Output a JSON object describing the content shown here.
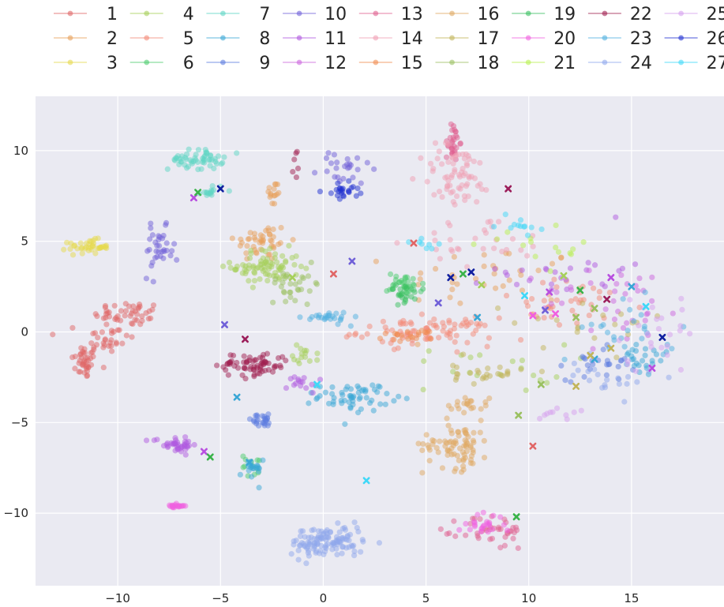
{
  "chart_data": {
    "type": "scatter",
    "title": "",
    "xlabel": "",
    "ylabel": "",
    "xlim": [
      -14.0,
      19.5
    ],
    "ylim": [
      -14.0,
      13.0
    ],
    "xticks": [
      -10,
      -5,
      0,
      5,
      10,
      15
    ],
    "yticks": [
      -10,
      -5,
      0,
      5,
      10
    ],
    "grid": true,
    "background": "#eaeaf2",
    "grid_color": "#ffffff",
    "legend_position": "top",
    "legend_columns": 9,
    "series": [
      {
        "name": "1",
        "color": "#e06666",
        "clusters": [
          [
            -11.6,
            -1.6,
            0.6,
            0.9,
            40
          ],
          [
            -9.5,
            1.0,
            1.5,
            0.6,
            45
          ],
          [
            -10.5,
            -0.4,
            1.2,
            1.0,
            30
          ]
        ]
      },
      {
        "name": "2",
        "color": "#e8a05a",
        "clusters": [
          [
            -3.0,
            5.0,
            1.2,
            1.0,
            45
          ],
          [
            -2.4,
            7.6,
            0.3,
            0.7,
            15
          ],
          [
            8.0,
            3.0,
            4.0,
            1.6,
            35
          ]
        ]
      },
      {
        "name": "3",
        "color": "#e6d94c",
        "clusters": [
          [
            -11.4,
            4.7,
            0.9,
            0.35,
            40
          ]
        ]
      },
      {
        "name": "4",
        "color": "#a6cf5a",
        "clusters": [
          [
            -2.8,
            3.6,
            1.5,
            0.9,
            80
          ],
          [
            -0.8,
            -1.2,
            0.6,
            0.5,
            15
          ],
          [
            8.0,
            -2.0,
            3.5,
            1.2,
            20
          ]
        ]
      },
      {
        "name": "5",
        "color": "#f48a78",
        "clusters": [
          [
            5.0,
            0.0,
            3.0,
            0.7,
            90
          ],
          [
            12.0,
            1.5,
            3.5,
            1.2,
            40
          ]
        ]
      },
      {
        "name": "6",
        "color": "#4ccc6e",
        "clusters": [
          [
            4.0,
            2.6,
            0.8,
            0.6,
            35
          ],
          [
            -3.4,
            -7.4,
            0.5,
            0.6,
            12
          ]
        ]
      },
      {
        "name": "7",
        "color": "#5dd6c4",
        "clusters": [
          [
            -6.2,
            9.5,
            1.2,
            0.5,
            55
          ],
          [
            -5.4,
            7.8,
            0.5,
            0.3,
            15
          ]
        ]
      },
      {
        "name": "8",
        "color": "#3aa7d6",
        "clusters": [
          [
            1.5,
            -3.6,
            1.6,
            0.7,
            60
          ],
          [
            -3.5,
            -7.6,
            0.5,
            0.6,
            20
          ],
          [
            15.5,
            -1.5,
            1.2,
            1.0,
            25
          ]
        ]
      },
      {
        "name": "9",
        "color": "#5b7be0",
        "clusters": [
          [
            -3.0,
            -4.9,
            0.8,
            0.3,
            25
          ],
          [
            13.5,
            -1.6,
            1.5,
            1.0,
            25
          ]
        ]
      },
      {
        "name": "10",
        "color": "#7060d8",
        "clusters": [
          [
            -8.0,
            4.4,
            0.7,
            1.2,
            35
          ],
          [
            1.0,
            9.0,
            1.2,
            0.9,
            25
          ]
        ]
      },
      {
        "name": "11",
        "color": "#b05adf",
        "clusters": [
          [
            -7.2,
            -6.2,
            1.0,
            0.4,
            40
          ],
          [
            -1.0,
            -2.8,
            0.7,
            0.5,
            15
          ],
          [
            11.5,
            3.5,
            3.0,
            1.5,
            25
          ]
        ]
      },
      {
        "name": "12",
        "color": "#cc66dd",
        "clusters": [
          [
            14.5,
            1.5,
            3.5,
            2.0,
            35
          ]
        ]
      },
      {
        "name": "13",
        "color": "#e06090",
        "clusters": [
          [
            6.3,
            10.5,
            0.3,
            1.0,
            30
          ],
          [
            8.3,
            -11.0,
            1.5,
            0.9,
            40
          ]
        ]
      },
      {
        "name": "14",
        "color": "#f0a0b4",
        "clusters": [
          [
            6.5,
            8.6,
            1.6,
            1.6,
            70
          ],
          [
            8.0,
            5.0,
            3.0,
            1.2,
            30
          ]
        ]
      },
      {
        "name": "15",
        "color": "#f08c50",
        "clusters": [
          [
            4.2,
            -0.2,
            1.5,
            0.3,
            20
          ]
        ]
      },
      {
        "name": "16",
        "color": "#e0a860",
        "clusters": [
          [
            6.5,
            -6.2,
            1.5,
            1.2,
            80
          ],
          [
            7.0,
            -4.0,
            1.0,
            0.4,
            20
          ]
        ]
      },
      {
        "name": "17",
        "color": "#c2b45a",
        "clusters": [
          [
            8.0,
            -2.3,
            1.5,
            0.5,
            25
          ],
          [
            13.0,
            0.5,
            3.5,
            1.5,
            20
          ]
        ]
      },
      {
        "name": "18",
        "color": "#9ac060",
        "clusters": [
          [
            -1.3,
            2.7,
            1.2,
            0.8,
            30
          ]
        ]
      },
      {
        "name": "19",
        "color": "#3ac060",
        "clusters": [
          [
            4.0,
            2.0,
            0.8,
            0.5,
            20
          ]
        ]
      },
      {
        "name": "20",
        "color": "#f060e0",
        "clusters": [
          [
            -7.2,
            -9.6,
            0.4,
            0.1,
            20
          ],
          [
            7.7,
            -10.6,
            1.0,
            0.5,
            25
          ]
        ]
      },
      {
        "name": "21",
        "color": "#b8f050",
        "clusters": [
          [
            11.0,
            4.5,
            3.0,
            1.0,
            15
          ]
        ]
      },
      {
        "name": "22",
        "color": "#a02050",
        "clusters": [
          [
            -3.4,
            -1.8,
            1.6,
            0.6,
            70
          ],
          [
            -1.4,
            9.7,
            0.3,
            1.6,
            6
          ]
        ]
      },
      {
        "name": "23",
        "color": "#50b0e0",
        "clusters": [
          [
            0.2,
            0.8,
            1.0,
            0.3,
            25
          ],
          [
            15.0,
            0.0,
            2.0,
            1.5,
            25
          ]
        ]
      },
      {
        "name": "24",
        "color": "#90a8ec",
        "clusters": [
          [
            0.2,
            -11.6,
            1.6,
            0.8,
            120
          ],
          [
            14.0,
            -2.5,
            2.0,
            1.0,
            20
          ]
        ]
      },
      {
        "name": "25",
        "color": "#d6a0ee",
        "clusters": [
          [
            16.0,
            0.0,
            2.0,
            2.0,
            25
          ],
          [
            11.5,
            -4.5,
            1.0,
            0.3,
            10
          ]
        ]
      },
      {
        "name": "26",
        "color": "#2030d0",
        "clusters": [
          [
            1.0,
            7.8,
            0.7,
            0.4,
            25
          ]
        ]
      },
      {
        "name": "27",
        "color": "#40d8f8",
        "clusters": [
          [
            9.5,
            5.8,
            1.0,
            0.5,
            12
          ],
          [
            4.8,
            5.0,
            0.6,
            0.3,
            8
          ]
        ]
      }
    ],
    "x_markers": [
      {
        "color": "#9b1d5a",
        "points": [
          [
            -3.8,
            -0.4
          ],
          [
            9.0,
            7.9
          ],
          [
            13.8,
            1.8
          ]
        ]
      },
      {
        "color": "#b84fe0",
        "points": [
          [
            -6.3,
            7.4
          ],
          [
            -5.8,
            -6.6
          ],
          [
            16.0,
            -2.0
          ],
          [
            14.0,
            3.0
          ],
          [
            11.0,
            2.2
          ]
        ]
      },
      {
        "color": "#3ab34a",
        "points": [
          [
            -5.5,
            -6.9
          ],
          [
            -6.1,
            7.7
          ],
          [
            9.4,
            -10.2
          ],
          [
            6.8,
            3.2
          ],
          [
            12.5,
            2.3
          ]
        ]
      },
      {
        "color": "#1020a0",
        "points": [
          [
            -5.0,
            7.9
          ],
          [
            7.2,
            3.3
          ],
          [
            16.5,
            -0.3
          ],
          [
            6.2,
            3.0
          ]
        ]
      },
      {
        "color": "#3aa7d6",
        "points": [
          [
            -4.2,
            -3.6
          ],
          [
            -3.6,
            -7.2
          ],
          [
            13.2,
            -1.5
          ],
          [
            15.0,
            2.5
          ],
          [
            7.5,
            0.8
          ]
        ]
      },
      {
        "color": "#e06666",
        "points": [
          [
            10.2,
            -6.3
          ],
          [
            0.5,
            3.2
          ],
          [
            4.4,
            4.9
          ]
        ]
      },
      {
        "color": "#9ac060",
        "points": [
          [
            9.5,
            -4.6
          ],
          [
            10.6,
            -2.9
          ],
          [
            13.2,
            1.3
          ],
          [
            12.3,
            0.8
          ]
        ]
      },
      {
        "color": "#a6cf5a",
        "points": [
          [
            -1.5,
            3.0
          ],
          [
            11.7,
            3.1
          ],
          [
            7.7,
            2.6
          ]
        ]
      },
      {
        "color": "#7060d8",
        "points": [
          [
            -4.8,
            0.4
          ],
          [
            1.4,
            3.9
          ],
          [
            10.8,
            1.2
          ],
          [
            5.6,
            1.6
          ]
        ]
      },
      {
        "color": "#40d8f8",
        "points": [
          [
            2.1,
            -8.2
          ],
          [
            -0.3,
            -2.9
          ],
          [
            9.8,
            2.0
          ],
          [
            15.7,
            1.4
          ]
        ]
      },
      {
        "color": "#f060e0",
        "points": [
          [
            10.2,
            0.9
          ],
          [
            11.3,
            1.0
          ]
        ]
      },
      {
        "color": "#c2b45a",
        "points": [
          [
            14.0,
            -0.9
          ],
          [
            13.0,
            -1.3
          ],
          [
            12.3,
            -3.0
          ]
        ]
      }
    ]
  }
}
